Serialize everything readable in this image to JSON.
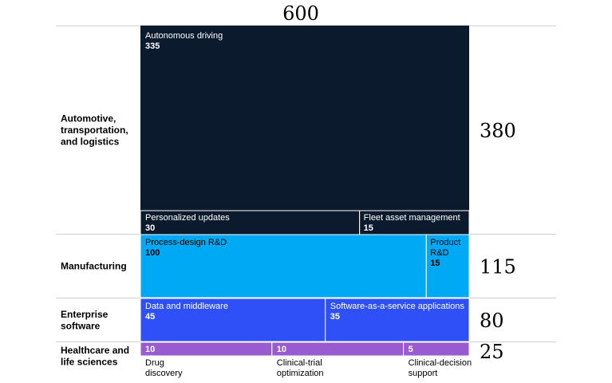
{
  "chart_data": {
    "type": "treemap",
    "total": 600,
    "colors": {
      "automotive": "#0b1a2c",
      "manufacturing": "#00a9f4",
      "enterprise": "#2f4ff7",
      "healthcare": "#9a5bd1",
      "text_dark": "#000000",
      "text_light": "#ffffff"
    },
    "rows": [
      {
        "label_lines": [
          "Automotive,",
          "transportation,",
          "and logistics"
        ],
        "total": 380,
        "color_key": "automotive",
        "cells": [
          {
            "label": "Autonomous driving",
            "value": 335
          },
          {
            "label": "Personalized updates",
            "value": 30
          },
          {
            "label": "Fleet asset management",
            "value": 15
          }
        ]
      },
      {
        "label_lines": [
          "Manufacturing"
        ],
        "total": 115,
        "color_key": "manufacturing",
        "cells": [
          {
            "label": "Process-design R&D",
            "value": 100
          },
          {
            "label_lines": [
              "Product",
              "R&D"
            ],
            "value": 15
          }
        ]
      },
      {
        "label_lines": [
          "Enterprise",
          "software"
        ],
        "total": 80,
        "color_key": "enterprise",
        "cells": [
          {
            "label": "Data and middleware",
            "value": 45
          },
          {
            "label": "Software-as-a-service applications",
            "value": 35
          }
        ]
      },
      {
        "label_lines": [
          "Healthcare and",
          "life sciences"
        ],
        "total": 25,
        "color_key": "healthcare",
        "cells": [
          {
            "label_lines": [
              "Drug",
              "discovery"
            ],
            "value": 10
          },
          {
            "label_lines": [
              "Clinical-trial",
              "optimization"
            ],
            "value": 10
          },
          {
            "label_lines": [
              "Clinical-decision",
              "support"
            ],
            "value": 5
          }
        ]
      }
    ]
  }
}
